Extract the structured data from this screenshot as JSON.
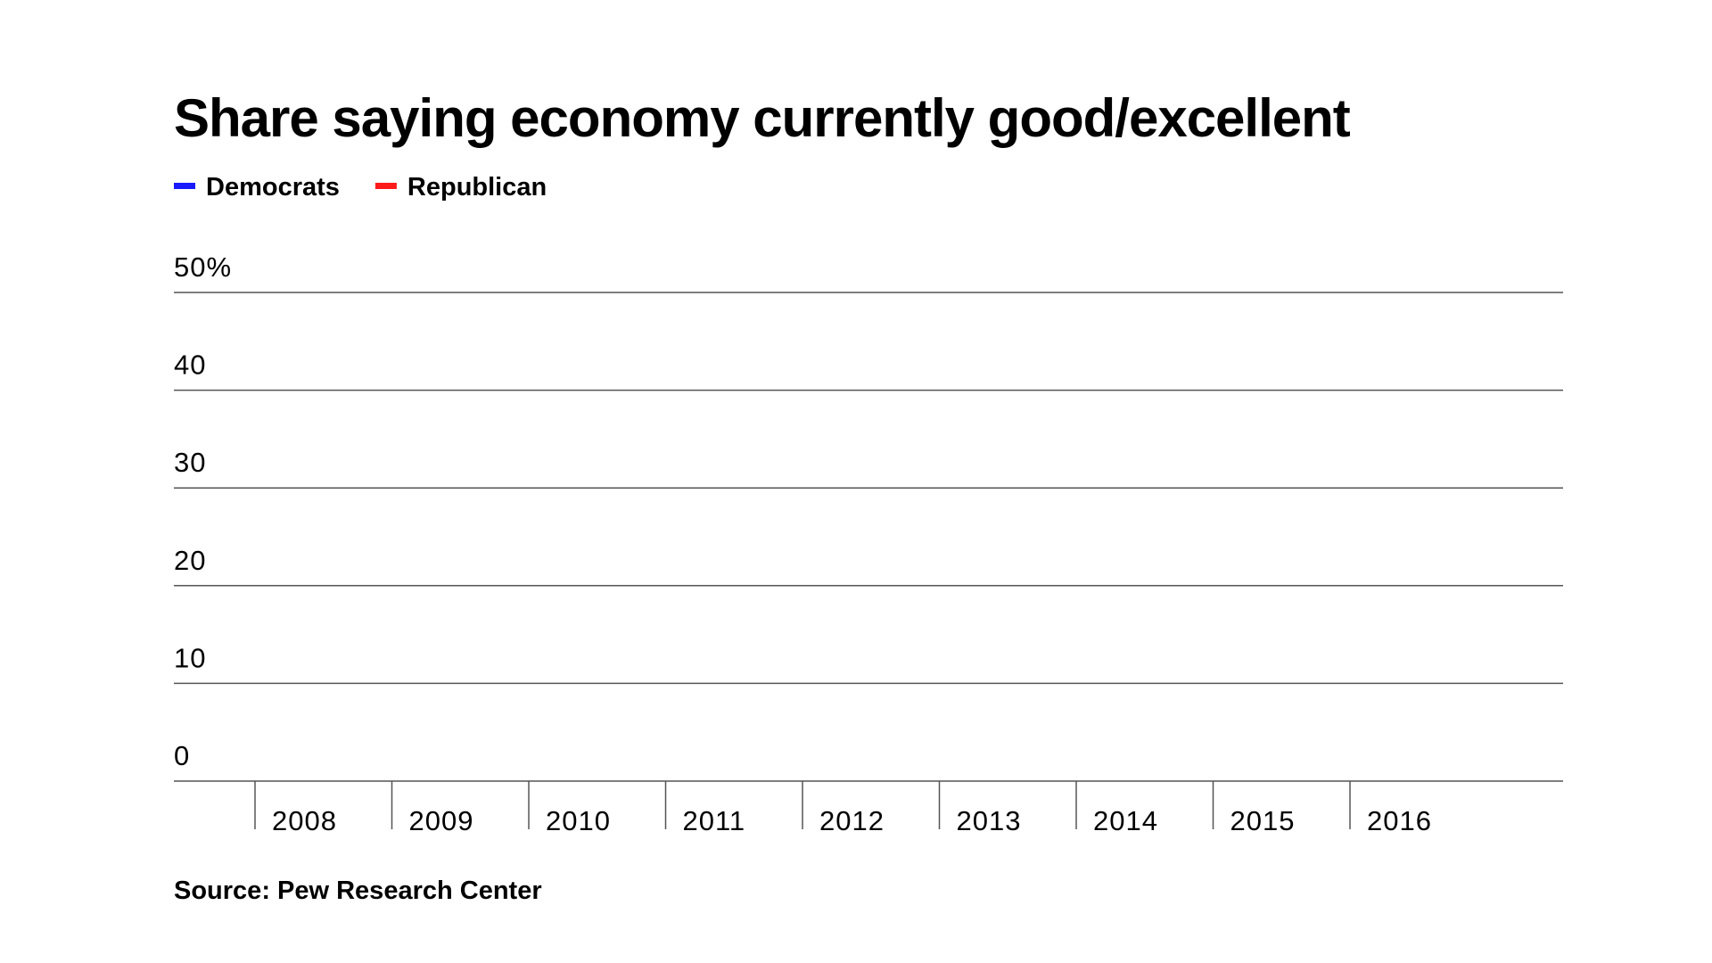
{
  "chart_data": {
    "type": "line",
    "title": "Share saying economy currently good/excellent",
    "categories": [
      "2008",
      "2009",
      "2010",
      "2011",
      "2012",
      "2013",
      "2014",
      "2015",
      "2016"
    ],
    "series": [
      {
        "name": "Democrats",
        "color": "#1a1aff",
        "values": [
          null,
          null,
          null,
          null,
          null,
          null,
          null,
          null,
          null
        ]
      },
      {
        "name": "Republican",
        "color": "#ff1a1a",
        "values": [
          null,
          null,
          null,
          null,
          null,
          null,
          null,
          null,
          null
        ]
      }
    ],
    "ylim": [
      0,
      50
    ],
    "yticks": [
      0,
      10,
      20,
      30,
      40,
      {
        "value": 50,
        "label": "50%"
      }
    ],
    "grid": true,
    "source": "Source: Pew Research Center"
  }
}
